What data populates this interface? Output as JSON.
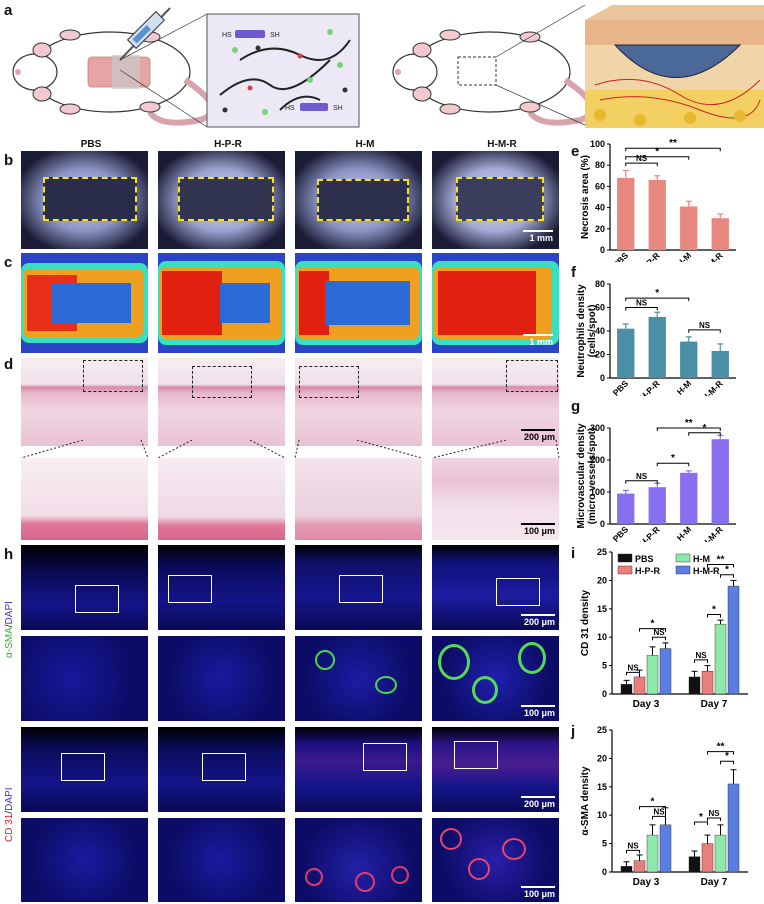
{
  "panel_a": {
    "letter": "a",
    "molecule_labels": [
      "HS",
      "SH",
      "HS",
      "SH"
    ]
  },
  "columns": [
    "PBS",
    "H-P-R",
    "H-M",
    "H-M-R"
  ],
  "panel_letters": {
    "b": "b",
    "c": "c",
    "d": "d",
    "e": "e",
    "f": "f",
    "g": "g",
    "h": "h",
    "i": "i",
    "j": "j"
  },
  "scale_bars": {
    "b": "1 mm",
    "c": "1 mm",
    "d_top": "200 μm",
    "d_bottom": "100 μm",
    "h1": "200 μm",
    "h2": "100 μm",
    "h3": "200 μm",
    "h4": "100 μm"
  },
  "row_labels": {
    "sma": {
      "prefix": "α-SMA",
      "sep": "/",
      "suffix": "DAPI"
    },
    "cd31": {
      "prefix": "CD 31",
      "sep": "/",
      "suffix": "DAPI"
    }
  },
  "colors": {
    "pink": "#e8877e",
    "teal": "#4a8fa6",
    "purple": "#8a6ef0",
    "black": "#111111",
    "red_bar": "#e87f7f",
    "green_bar": "#8ee8a8",
    "blue_bar": "#5b7fe0"
  },
  "chart_data": [
    {
      "id": "e",
      "type": "bar",
      "categories": [
        "PBS",
        "H-P-R",
        "H-M",
        "H-M-R"
      ],
      "values": [
        68,
        66,
        41,
        30
      ],
      "errors": [
        7,
        4,
        5,
        4
      ],
      "ylabel": "Necrosis area (%)",
      "ylim": [
        0,
        100
      ],
      "yticks": [
        0,
        20,
        40,
        60,
        80,
        100
      ],
      "annotations": [
        "NS",
        "*",
        "**"
      ]
    },
    {
      "id": "f",
      "type": "bar",
      "categories": [
        "PBS",
        "H-P-R",
        "H-M",
        "H-M-R"
      ],
      "values": [
        42,
        52,
        31,
        23
      ],
      "errors": [
        4,
        4,
        4,
        6
      ],
      "ylabel": "Neutrophils density (cells/spot)",
      "ylim": [
        0,
        80
      ],
      "yticks": [
        0,
        20,
        40,
        60,
        80
      ],
      "annotations": [
        "NS",
        "*",
        "NS"
      ]
    },
    {
      "id": "g",
      "type": "bar",
      "categories": [
        "PBS",
        "H-P-R",
        "H-M",
        "H-M-R"
      ],
      "values": [
        95,
        115,
        160,
        265
      ],
      "errors": [
        10,
        12,
        6,
        12
      ],
      "ylabel": "Microvascular density (micro vessels/spot)",
      "ylim": [
        0,
        300
      ],
      "yticks": [
        0,
        100,
        200,
        300
      ],
      "annotations": [
        "NS",
        "*",
        "*",
        "**"
      ]
    },
    {
      "id": "i",
      "type": "bar",
      "categories": [
        "Day 3",
        "Day 7"
      ],
      "series": [
        {
          "name": "PBS",
          "values": [
            1.7,
            3.0
          ],
          "errors": [
            0.7,
            1.0
          ]
        },
        {
          "name": "H-P-R",
          "values": [
            3.0,
            4.0
          ],
          "errors": [
            1.2,
            1.0
          ]
        },
        {
          "name": "H-M",
          "values": [
            6.8,
            12.3
          ],
          "errors": [
            1.5,
            0.7
          ]
        },
        {
          "name": "H-M-R",
          "values": [
            8.0,
            19.0
          ],
          "errors": [
            1.0,
            1.0
          ]
        }
      ],
      "ylabel": "CD 31 density",
      "ylim": [
        0,
        25
      ],
      "yticks": [
        0,
        5,
        10,
        15,
        20,
        25
      ],
      "annotations": [
        "NS",
        "NS",
        "*",
        "NS",
        "*",
        "*",
        "**"
      ]
    },
    {
      "id": "j",
      "type": "bar",
      "categories": [
        "Day 3",
        "Day 7"
      ],
      "series": [
        {
          "name": "PBS",
          "values": [
            1.0,
            2.7
          ],
          "errors": [
            0.8,
            1.0
          ]
        },
        {
          "name": "H-P-R",
          "values": [
            2.0,
            5.0
          ],
          "errors": [
            1.0,
            1.5
          ]
        },
        {
          "name": "H-M",
          "values": [
            6.5,
            6.5
          ],
          "errors": [
            1.8,
            1.8
          ]
        },
        {
          "name": "H-M-R",
          "values": [
            8.3,
            15.5
          ],
          "errors": [
            3.0,
            2.5
          ]
        }
      ],
      "ylabel": "α-SMA density",
      "ylim": [
        0,
        25
      ],
      "yticks": [
        0,
        5,
        10,
        15,
        20,
        25
      ],
      "annotations": [
        "NS",
        "NS",
        "*",
        "NS",
        "*",
        "*",
        "**"
      ]
    }
  ]
}
